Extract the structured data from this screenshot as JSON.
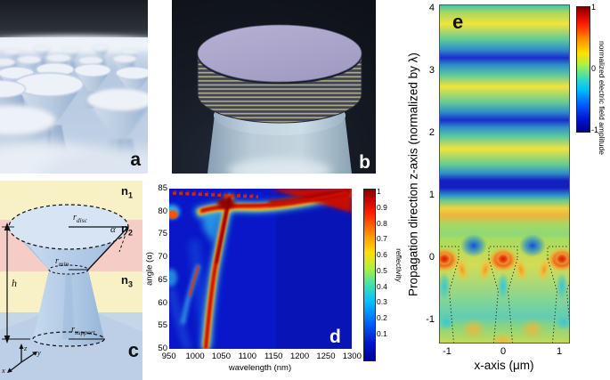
{
  "figure": {
    "panel_labels": {
      "a": "a",
      "b": "b",
      "c": "c",
      "d": "d",
      "e": "e"
    }
  },
  "panels": {
    "c": {
      "media_labels": [
        {
          "base": "n",
          "sub": "1"
        },
        {
          "base": "n",
          "sub": "2"
        },
        {
          "base": "n",
          "sub": "3"
        }
      ],
      "dim_labels": {
        "r_disc": {
          "base": "r",
          "sub": "disc"
        },
        "r_min": {
          "base": "r",
          "sub": "min"
        },
        "r_support": {
          "base": "r",
          "sub": "support"
        },
        "alpha": "α",
        "height": "h"
      },
      "axis_triad": {
        "x": "x",
        "y": "y",
        "z": "z"
      }
    },
    "d": {
      "xlabel": "wavelength (nm)",
      "ylabel": "angle (α)",
      "x_ticks": [
        "950",
        "1000",
        "1050",
        "1100",
        "1150",
        "1200",
        "1250",
        "1300"
      ],
      "y_ticks": [
        "85",
        "80",
        "75",
        "70",
        "65",
        "60",
        "55",
        "50"
      ],
      "colorbar": {
        "label": "reflectivity",
        "ticks": [
          "1",
          "0.9",
          "0.8",
          "0.7",
          "0.6",
          "0.5",
          "0.4",
          "0.3",
          "0.2",
          "0.1"
        ]
      }
    },
    "e": {
      "xlabel": "x-axis (μm)",
      "ylabel": "Propagation direction z-axis (normalized by λ)",
      "x_ticks": [
        "-1",
        "0",
        "1"
      ],
      "y_ticks": [
        "4",
        "3",
        "2",
        "1",
        "0",
        "-1"
      ],
      "colorbar": {
        "label": "normalized electric field amplitude",
        "ticks": [
          "1",
          "0",
          "-1"
        ]
      }
    }
  },
  "chart_data": [
    {
      "id": "d",
      "type": "heatmap",
      "xlabel": "wavelength (nm)",
      "ylabel": "angle (α)",
      "x_range": [
        950,
        1300
      ],
      "y_range": [
        50,
        85
      ],
      "x_ticks": [
        950,
        1000,
        1050,
        1100,
        1150,
        1200,
        1250,
        1300
      ],
      "y_ticks": [
        50,
        55,
        60,
        65,
        70,
        75,
        80,
        85
      ],
      "colorbar": {
        "label": "reflectivity",
        "range": [
          0,
          1
        ],
        "ticks": [
          0.1,
          0.2,
          0.3,
          0.4,
          0.5,
          0.6,
          0.7,
          0.8,
          0.9,
          1
        ],
        "colormap": "jet"
      },
      "background_value": 0.05,
      "features": [
        {
          "name": "upper-arm high-reflectivity band",
          "value": 1,
          "path": "from (985 nm, 79°) rising to (1300 nm, 85°), widening toward long wavelengths"
        },
        {
          "name": "descending high-reflectivity arm",
          "value": 1,
          "path": "from (1065 nm, 84°) curving down to (1020 nm, 50°)"
        },
        {
          "name": "weak side branch",
          "value": 0.5,
          "path": "from (1005 nm, 68°) fading toward (975 nm, 55°)"
        },
        {
          "name": "oscillatory fringes",
          "value": 0.9,
          "path": "dashed high/low pattern along 84–85° for 950–1120 nm"
        },
        {
          "name": "edge resonances",
          "value": 0.6,
          "path": "small patches at left edge near (950 nm, 78–80°) and (950 nm, 63–70°)"
        }
      ]
    },
    {
      "id": "e",
      "type": "heatmap",
      "xlabel": "x-axis (μm)",
      "ylabel": "Propagation direction z-axis (normalized by λ)",
      "x_range": [
        -1.1,
        1.1
      ],
      "z_range": [
        -1.45,
        4.05
      ],
      "x_ticks": [
        -1,
        0,
        1
      ],
      "z_ticks": [
        -1,
        0,
        1,
        2,
        3,
        4
      ],
      "colorbar": {
        "label": "normalized electric field amplitude",
        "range": [
          -1,
          1
        ],
        "ticks": [
          -1,
          0,
          1
        ],
        "colormap": "jet"
      },
      "features": [
        {
          "name": "standing wave above structures",
          "path": "horizontal bands, period 1 λ: maxima ≈ +0.4 (yellow) at z ≈ 0.75, 1.75, 2.75, 3.75; minima ≈ −1 (dark blue) at z ≈ 1.2, 2.25, 3.25"
        },
        {
          "name": "hot spots",
          "value": 1,
          "path": "red maxima inside disc tops at x = −1, 0, +1 μm, z ≈ 0"
        },
        {
          "name": "cold spots",
          "value": -1,
          "path": "blue minima between discs at x = ±0.5 μm, z ≈ 0.2"
        },
        {
          "name": "field below structures",
          "path": "weak positive (yellow-green) background with cyan band near z ≈ −1 and orange lobes along cone walls"
        }
      ],
      "structures": {
        "outline_style": "dotted",
        "centers_um": [
          -1,
          0,
          1
        ],
        "period_um": 1,
        "disc_half_width_um": 0.24,
        "disc_top_z": 0.16,
        "waist_z": -0.52
      }
    }
  ],
  "colors": {
    "jet_top": "#800000",
    "jet_bottom": "#000090",
    "panel_d_background": "#0a16c4",
    "panel_c_band_n1": "#f8f1c6",
    "panel_c_band_n2": "#f6cdc6",
    "panel_c_structure": "#bdd3ea"
  }
}
